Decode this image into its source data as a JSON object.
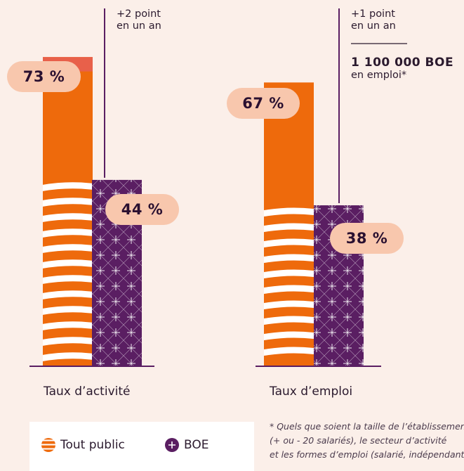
{
  "chart_data": {
    "type": "bar",
    "categories": [
      "Taux d’activité",
      "Taux d’emploi"
    ],
    "series": [
      {
        "name": "Tout public",
        "values": [
          73,
          67
        ],
        "color": "#ee6a0c"
      },
      {
        "name": "BOE",
        "values": [
          44,
          38
        ],
        "color": "#5a1e62"
      }
    ],
    "value_labels": {
      "tout_public": [
        "73 %",
        "67 %"
      ],
      "boe": [
        "44 %",
        "38 %"
      ]
    },
    "evolution_labels": [
      {
        "line1": "+2 point",
        "line2": "en un an"
      },
      {
        "line1": "+1 point",
        "line2": "en un an"
      }
    ],
    "highlight": {
      "value": "1 100 000 BOE",
      "caption": "en emploi*"
    },
    "ylim": [
      0,
      80
    ],
    "grid": false,
    "legend": {
      "placement": "bottom-left",
      "items": [
        {
          "label": "Tout public",
          "icon": "striped-orange-circle-icon"
        },
        {
          "label": "BOE",
          "icon": "purple-cross-circle-icon"
        }
      ]
    },
    "footnote": [
      "* Quels que soient la taille de l’établissement",
      "(+ ou - 20 salariés), le secteur d’activité",
      "et les formes d’emploi (salarié, indépendant)."
    ],
    "colors": {
      "orange": "#ee6a0c",
      "purple": "#5a1e62",
      "pill": "#f8c7ad",
      "increase": "#e8604a",
      "background": "#fbefe9"
    }
  }
}
